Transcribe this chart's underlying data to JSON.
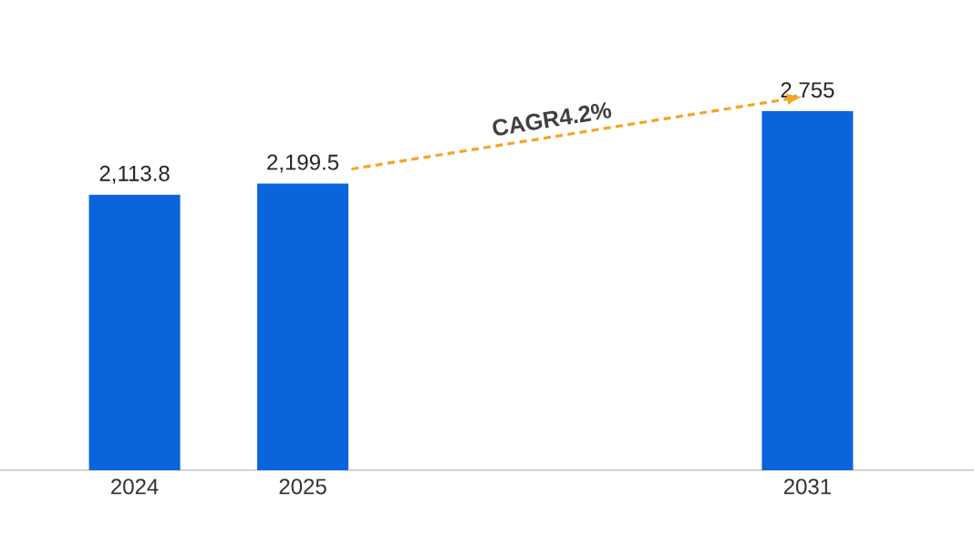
{
  "chart_data": {
    "type": "bar",
    "categories": [
      "2024",
      "2025",
      null,
      null,
      "2031"
    ],
    "values": [
      2113.8,
      2199.5,
      null,
      null,
      2755
    ],
    "value_labels": [
      "2,113.8",
      "2,199.5",
      null,
      null,
      "2,755"
    ],
    "color": "#0a64dc",
    "tick_labels": "x",
    "annotations": [
      "CAGR4.2%"
    ]
  }
}
